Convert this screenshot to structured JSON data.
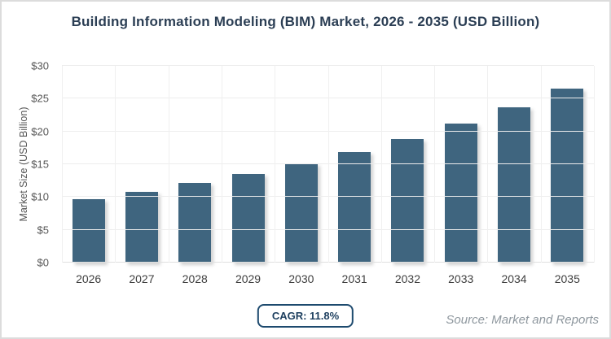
{
  "page": {
    "title": "Building Information Modeling (BIM) Market, 2026 - 2035 (USD Billion)"
  },
  "chart_data": {
    "type": "bar",
    "title": "Building Information Modeling (BIM) Market, 2026 - 2035 (USD Billion)",
    "categories": [
      "2026",
      "2027",
      "2028",
      "2029",
      "2030",
      "2031",
      "2032",
      "2033",
      "2034",
      "2035"
    ],
    "values": [
      9.7,
      10.8,
      12.1,
      13.5,
      15.1,
      16.9,
      18.9,
      21.2,
      23.7,
      26.5
    ],
    "xlabel": "",
    "ylabel": "Market Size (USD Billion)",
    "ylim": [
      0,
      30
    ],
    "ytick_step": 5,
    "yticks": [
      "$0",
      "$5",
      "$10",
      "$15",
      "$20",
      "$25",
      "$30"
    ],
    "grid": true,
    "legend": "none",
    "bar_color": "#3f657f"
  },
  "footer": {
    "cagr_label": "CAGR: 11.8%",
    "source": "Source: Market and Reports"
  },
  "colors": {
    "title_text": "#2b3e54",
    "bar_fill": "#3f657f",
    "gridline": "#ededed",
    "axis_text": "#575757",
    "badge_border": "#1d4a6e",
    "badge_text": "#1c3e5e",
    "source_text": "#8e979e",
    "page_border": "#dcdcdc"
  }
}
